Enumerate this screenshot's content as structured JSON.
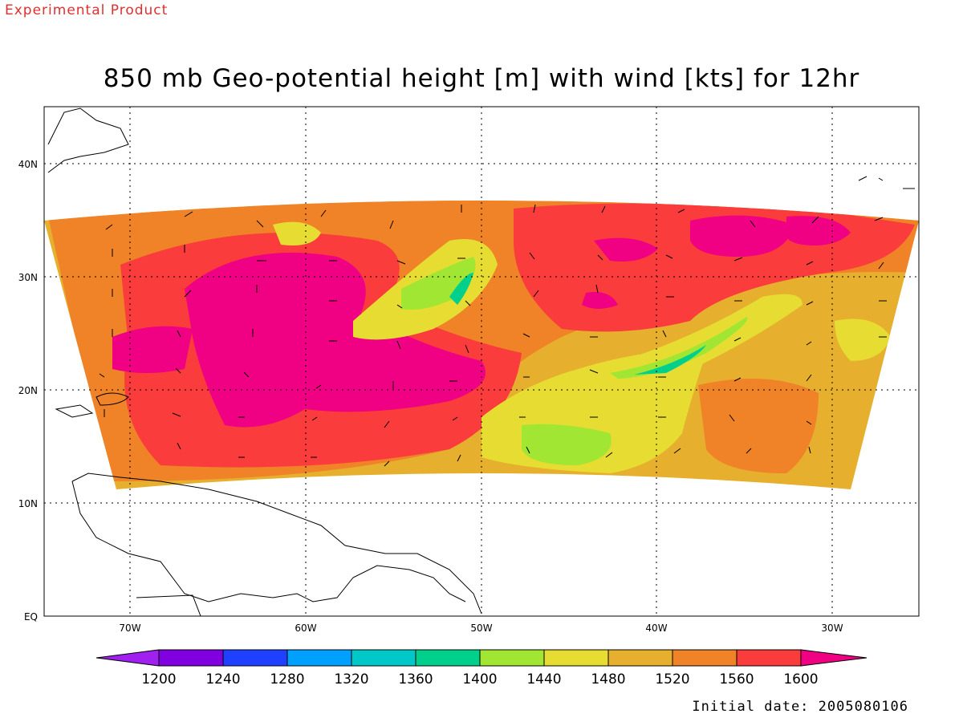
{
  "header": {
    "watermark": "Experimental Product",
    "title": "850 mb Geo-potential height [m] with wind [kts] for 12hr"
  },
  "map": {
    "lat_labels": [
      "40N",
      "30N",
      "20N",
      "10N",
      "EQ"
    ],
    "lon_labels": [
      "70W",
      "60W",
      "50W",
      "40W",
      "30W"
    ]
  },
  "colorbar": {
    "colors": [
      "#a020f0",
      "#8000e0",
      "#2040ff",
      "#00a0ff",
      "#00c8c8",
      "#00d08c",
      "#a0e632",
      "#e6dc32",
      "#e6af2d",
      "#f08228",
      "#fa3c3c",
      "#f00082"
    ],
    "tick_labels": [
      "1200",
      "1240",
      "1280",
      "1320",
      "1360",
      "1400",
      "1440",
      "1480",
      "1520",
      "1560",
      "1600"
    ]
  },
  "footer": {
    "initial_date": "Initial date: 2005080106"
  }
}
